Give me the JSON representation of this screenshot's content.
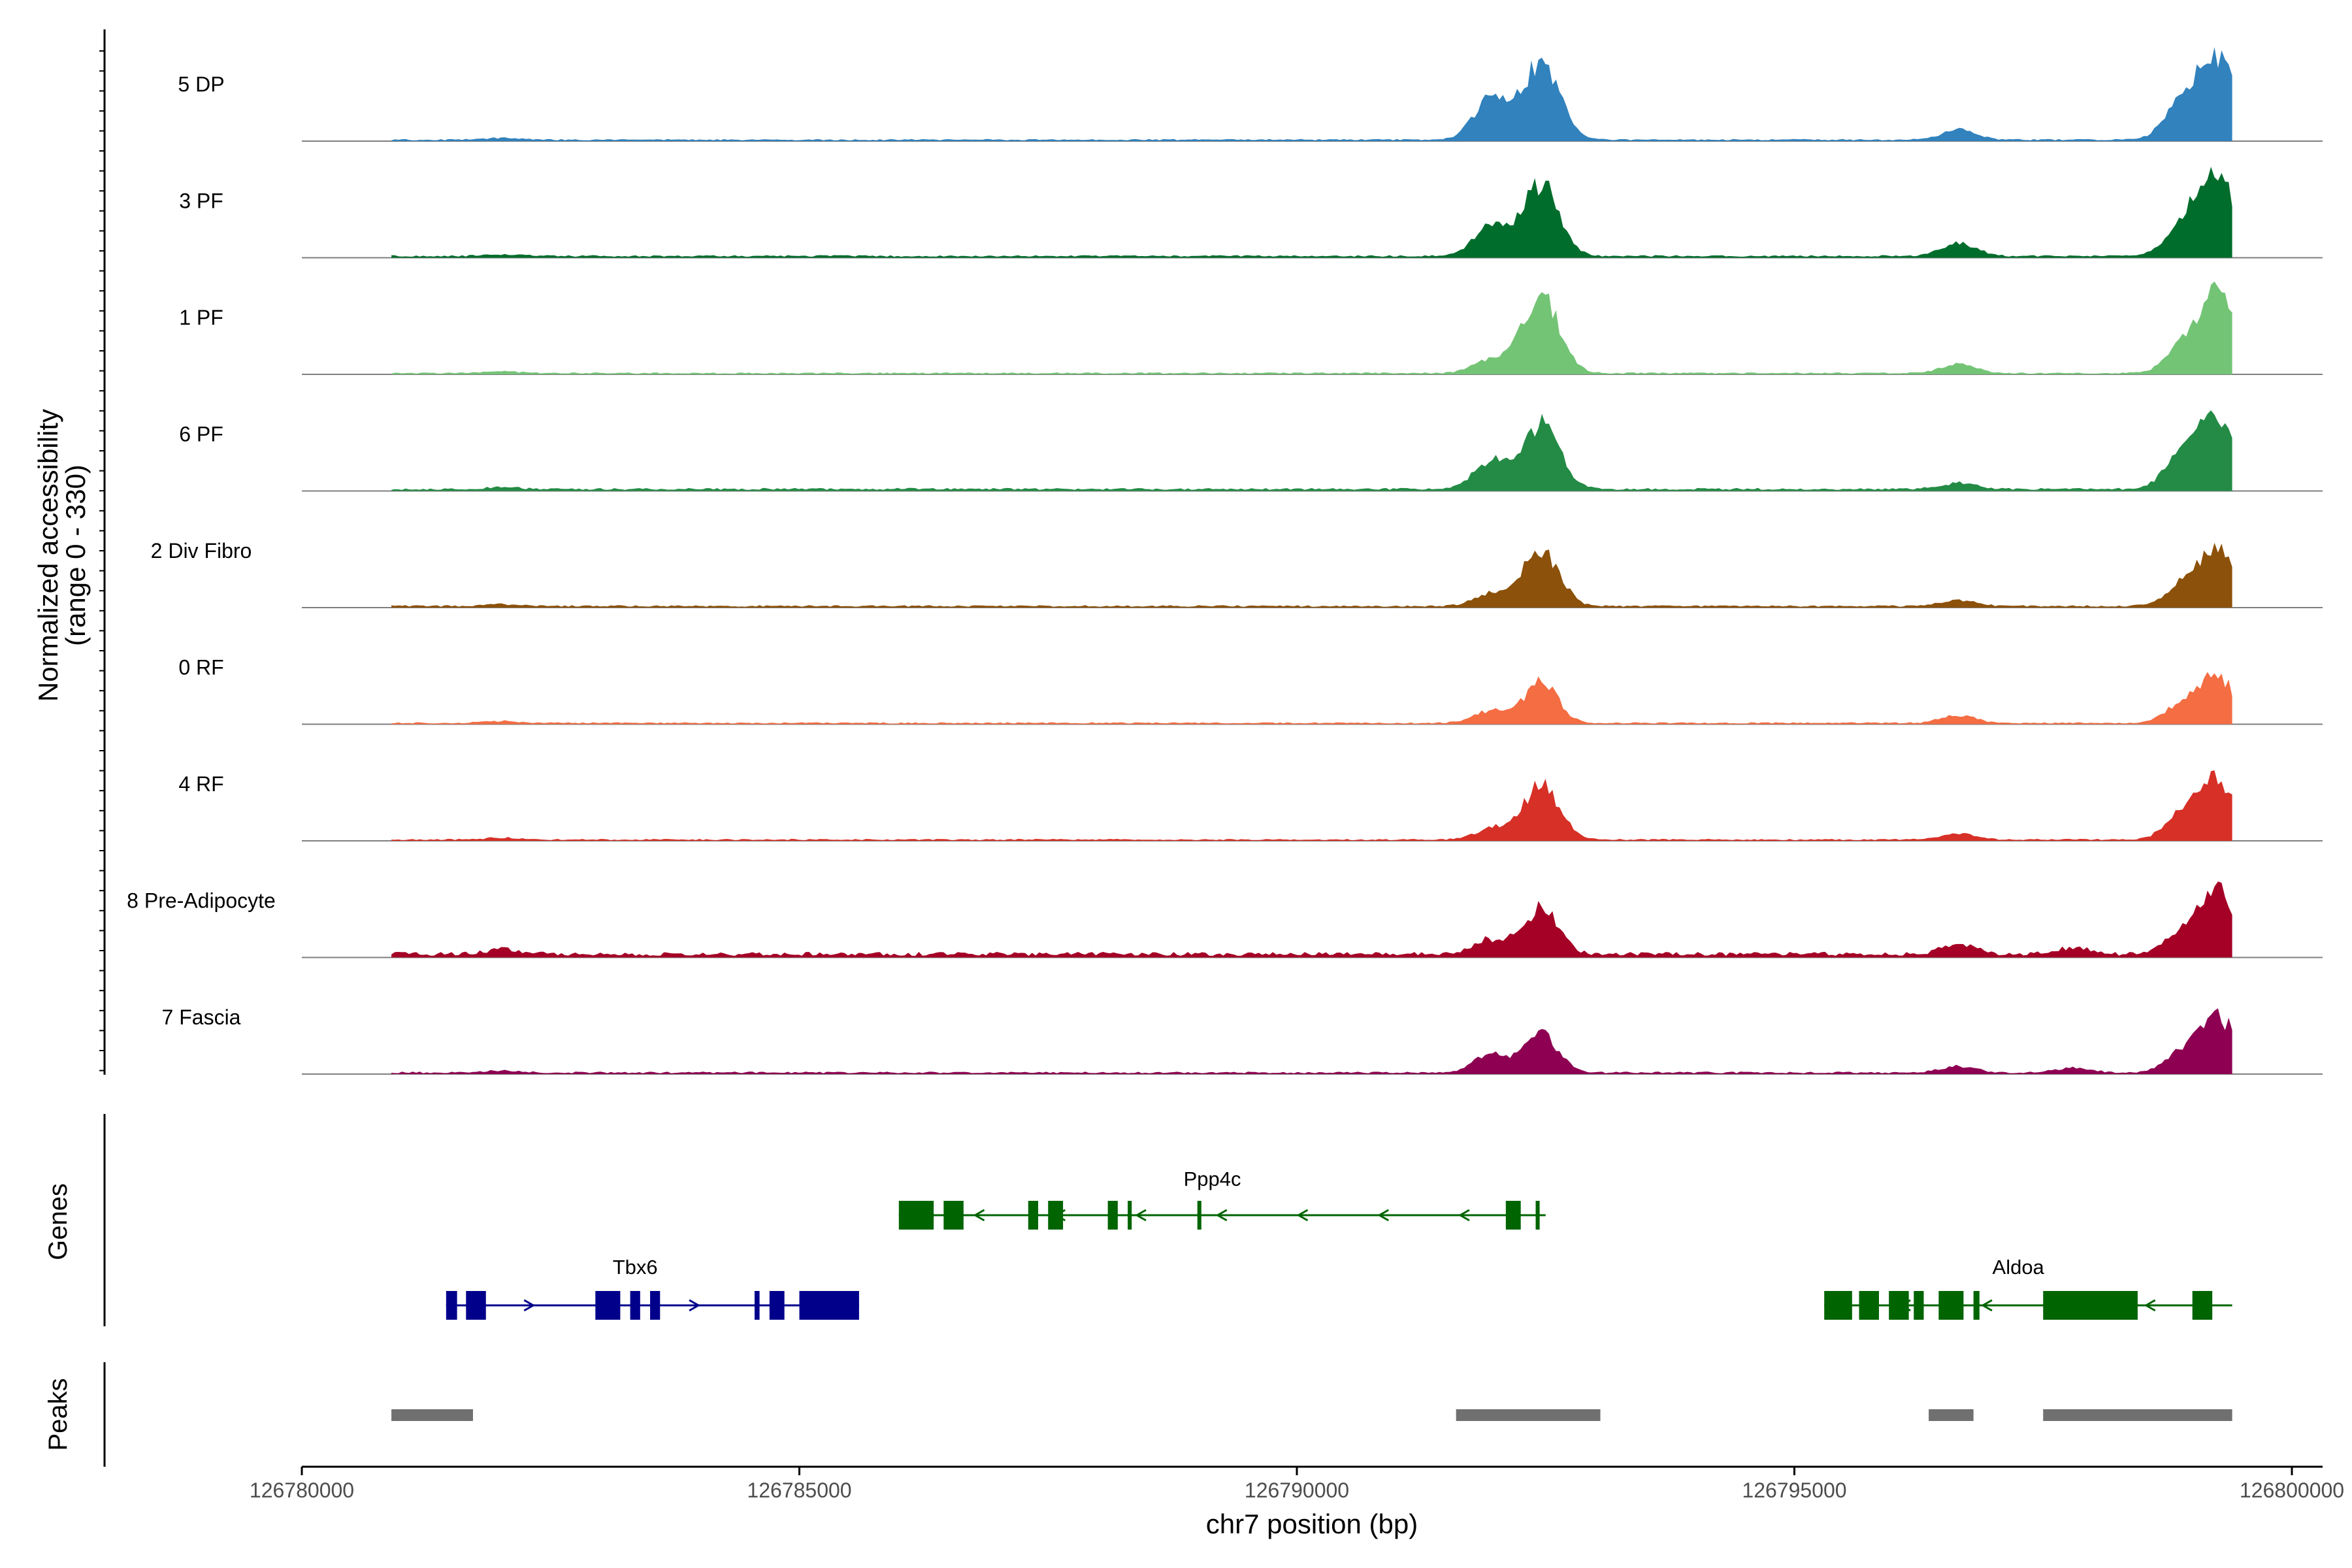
{
  "chart_data": {
    "type": "area",
    "title": "",
    "xlabel": "chr7 position (bp)",
    "ylabel": "Normalized accessibility",
    "ylabel_range": "(range 0 - 330)",
    "ylim": [
      0,
      330
    ],
    "xlim": [
      126780000,
      126800400
    ],
    "x_ticks": [
      126780000,
      126785000,
      126790000,
      126795000,
      126800000
    ],
    "x_tick_labels": [
      "126780000",
      "126785000",
      "126790000",
      "126795000",
      "126800000"
    ],
    "region": [
      126780900,
      126799400
    ],
    "series": [
      {
        "name": "5 DP",
        "color": "#3182bd",
        "peaks": [
          [
            126782000,
            6
          ],
          [
            126791950,
            140
          ],
          [
            126792450,
            250
          ],
          [
            126796650,
            35
          ],
          [
            126798900,
            120
          ],
          [
            126799250,
            250
          ]
        ],
        "background": 6,
        "noise": 4
      },
      {
        "name": "3 PF",
        "color": "#006d2c",
        "peaks": [
          [
            126782000,
            6
          ],
          [
            126791950,
            95
          ],
          [
            126792450,
            230
          ],
          [
            126796650,
            45
          ],
          [
            126798900,
            100
          ],
          [
            126799250,
            250
          ]
        ],
        "background": 7,
        "noise": 5
      },
      {
        "name": "1 PF",
        "color": "#74c476",
        "peaks": [
          [
            126782000,
            6
          ],
          [
            126791950,
            45
          ],
          [
            126792450,
            250
          ],
          [
            126796650,
            30
          ],
          [
            126798900,
            80
          ],
          [
            126799250,
            250
          ]
        ],
        "background": 5,
        "noise": 4
      },
      {
        "name": "6 PF",
        "color": "#238b45",
        "peaks": [
          [
            126782000,
            6
          ],
          [
            126791950,
            90
          ],
          [
            126792450,
            210
          ],
          [
            126796650,
            20
          ],
          [
            126798900,
            120
          ],
          [
            126799250,
            200
          ]
        ],
        "background": 8,
        "noise": 6
      },
      {
        "name": "2 Div Fibro",
        "color": "#8c510a",
        "peaks": [
          [
            126782000,
            6
          ],
          [
            126791950,
            40
          ],
          [
            126792450,
            180
          ],
          [
            126796650,
            20
          ],
          [
            126798900,
            60
          ],
          [
            126799250,
            180
          ]
        ],
        "background": 6,
        "noise": 5
      },
      {
        "name": "0 RF",
        "color": "#f46d43",
        "peaks": [
          [
            126782000,
            6
          ],
          [
            126791950,
            40
          ],
          [
            126792450,
            130
          ],
          [
            126796650,
            25
          ],
          [
            126798900,
            60
          ],
          [
            126799250,
            150
          ]
        ],
        "background": 5,
        "noise": 4
      },
      {
        "name": "4 RF",
        "color": "#d73027",
        "peaks": [
          [
            126782000,
            6
          ],
          [
            126791950,
            35
          ],
          [
            126792450,
            180
          ],
          [
            126796650,
            20
          ],
          [
            126798900,
            80
          ],
          [
            126799250,
            190
          ]
        ],
        "background": 5,
        "noise": 4
      },
      {
        "name": "8 Pre-Adipocyte",
        "color": "#a50026",
        "peaks": [
          [
            126782000,
            15
          ],
          [
            126791950,
            50
          ],
          [
            126792450,
            150
          ],
          [
            126796650,
            35
          ],
          [
            126797800,
            20
          ],
          [
            126798900,
            60
          ],
          [
            126799250,
            200
          ]
        ],
        "background": 12,
        "noise": 12
      },
      {
        "name": "7 Fascia",
        "color": "#8e0152",
        "peaks": [
          [
            126782000,
            6
          ],
          [
            126791950,
            60
          ],
          [
            126792450,
            130
          ],
          [
            126796650,
            20
          ],
          [
            126797800,
            15
          ],
          [
            126798900,
            60
          ],
          [
            126799250,
            180
          ]
        ],
        "background": 6,
        "noise": 5
      }
    ],
    "genes_panel_label": "Genes",
    "genes": [
      {
        "name": "Ppp4c",
        "strand": "-",
        "color": "#006400",
        "start": 126786000,
        "end": 126792500,
        "exons": [
          [
            126786000,
            126786350
          ],
          [
            126786450,
            126786650
          ],
          [
            126787300,
            126787400
          ],
          [
            126787500,
            126787650
          ],
          [
            126788100,
            126788200
          ],
          [
            126788300,
            126788340
          ],
          [
            126789000,
            126789040
          ],
          [
            126792100,
            126792250
          ],
          [
            126792400,
            126792440
          ]
        ]
      },
      {
        "name": "Tbx6",
        "strand": "+",
        "color": "#00008b",
        "start": 126781450,
        "end": 126785600,
        "exons": [
          [
            126781450,
            126781560
          ],
          [
            126781650,
            126781850
          ],
          [
            126782950,
            126783200
          ],
          [
            126783300,
            126783400
          ],
          [
            126783500,
            126783600
          ],
          [
            126784550,
            126784600
          ],
          [
            126784700,
            126784850
          ],
          [
            126785000,
            126785600
          ]
        ]
      },
      {
        "name": "Aldoa",
        "strand": "-",
        "color": "#006400",
        "start": 126795300,
        "end": 126799400,
        "exons": [
          [
            126795300,
            126795580
          ],
          [
            126795650,
            126795850
          ],
          [
            126795950,
            126796150
          ],
          [
            126796200,
            126796300
          ],
          [
            126796450,
            126796700
          ],
          [
            126796800,
            126796860
          ],
          [
            126797500,
            126798450
          ],
          [
            126799000,
            126799200
          ]
        ]
      }
    ],
    "peaks_panel_label": "Peaks",
    "peak_regions": [
      [
        126780900,
        126781720
      ],
      [
        126791600,
        126793050
      ],
      [
        126796350,
        126796800
      ],
      [
        126797500,
        126799400
      ]
    ],
    "peak_color": "#707070"
  }
}
